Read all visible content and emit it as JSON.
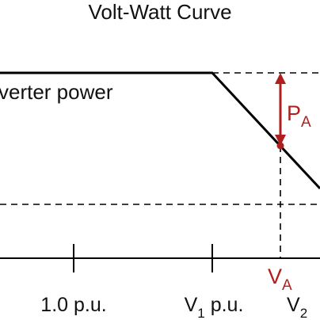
{
  "diagram": {
    "title": "Volt-Watt Curve",
    "curve_label": "verter power",
    "power_delta": {
      "main": "P",
      "sub": "A"
    },
    "voltage_marker": {
      "main": "V",
      "sub": "A"
    },
    "x_ticks": [
      {
        "main": "1.0 p.u.",
        "sub": "",
        "suffix": ""
      },
      {
        "main": "V",
        "sub": "1",
        "suffix": " p.u."
      },
      {
        "main": "V",
        "sub": "2",
        "suffix": ""
      }
    ],
    "colors": {
      "line": "#000000",
      "dashed": "#000000",
      "accent": "#b01e1e"
    }
  }
}
